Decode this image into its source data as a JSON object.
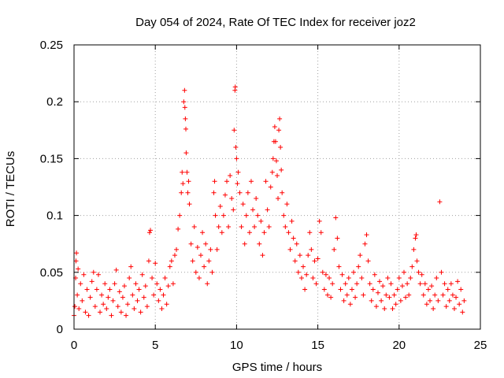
{
  "chart_data": {
    "type": "scatter",
    "title": "Day 054 of 2024, Rate Of TEC Index for receiver joz2",
    "xlabel": "GPS time / hours",
    "ylabel": "ROTI / TECUs",
    "xlim": [
      0,
      25
    ],
    "ylim": [
      0,
      0.25
    ],
    "x_ticks": [
      0,
      5,
      10,
      15,
      20,
      25
    ],
    "x_tick_labels": [
      "0",
      "5",
      "10",
      "15",
      "20",
      "25"
    ],
    "y_ticks": [
      0,
      0.05,
      0.1,
      0.15,
      0.2,
      0.25
    ],
    "y_tick_labels": [
      "0",
      "0.05",
      "0.1",
      "0.15",
      "0.2",
      "0.25"
    ],
    "grid": true,
    "marker": "+",
    "color": "#ff0000",
    "series": [
      {
        "name": "ROTI",
        "points": [
          [
            0.0,
            0.012
          ],
          [
            0.05,
            0.02
          ],
          [
            0.1,
            0.045
          ],
          [
            0.12,
            0.06
          ],
          [
            0.15,
            0.067
          ],
          [
            0.2,
            0.03
          ],
          [
            0.25,
            0.053
          ],
          [
            0.3,
            0.018
          ],
          [
            0.4,
            0.04
          ],
          [
            0.5,
            0.025
          ],
          [
            0.6,
            0.048
          ],
          [
            0.7,
            0.015
          ],
          [
            0.8,
            0.035
          ],
          [
            0.9,
            0.012
          ],
          [
            1.0,
            0.028
          ],
          [
            1.1,
            0.042
          ],
          [
            1.2,
            0.05
          ],
          [
            1.3,
            0.02
          ],
          [
            1.4,
            0.035
          ],
          [
            1.5,
            0.048
          ],
          [
            1.6,
            0.015
          ],
          [
            1.7,
            0.03
          ],
          [
            1.8,
            0.022
          ],
          [
            1.9,
            0.04
          ],
          [
            2.0,
            0.018
          ],
          [
            2.1,
            0.028
          ],
          [
            2.2,
            0.035
          ],
          [
            2.3,
            0.012
          ],
          [
            2.4,
            0.025
          ],
          [
            2.5,
            0.04
          ],
          [
            2.6,
            0.052
          ],
          [
            2.7,
            0.02
          ],
          [
            2.8,
            0.033
          ],
          [
            2.9,
            0.015
          ],
          [
            3.0,
            0.028
          ],
          [
            3.1,
            0.038
          ],
          [
            3.2,
            0.012
          ],
          [
            3.3,
            0.022
          ],
          [
            3.4,
            0.045
          ],
          [
            3.5,
            0.055
          ],
          [
            3.6,
            0.03
          ],
          [
            3.7,
            0.018
          ],
          [
            3.8,
            0.04
          ],
          [
            3.9,
            0.025
          ],
          [
            4.0,
            0.035
          ],
          [
            4.1,
            0.015
          ],
          [
            4.2,
            0.048
          ],
          [
            4.3,
            0.028
          ],
          [
            4.4,
            0.038
          ],
          [
            4.5,
            0.02
          ],
          [
            4.6,
            0.06
          ],
          [
            4.65,
            0.085
          ],
          [
            4.7,
            0.087
          ],
          [
            4.8,
            0.045
          ],
          [
            4.9,
            0.03
          ],
          [
            5.0,
            0.058
          ],
          [
            5.1,
            0.04
          ],
          [
            5.2,
            0.025
          ],
          [
            5.3,
            0.035
          ],
          [
            5.4,
            0.018
          ],
          [
            5.5,
            0.03
          ],
          [
            5.6,
            0.045
          ],
          [
            5.7,
            0.022
          ],
          [
            5.8,
            0.038
          ],
          [
            5.9,
            0.055
          ],
          [
            6.0,
            0.06
          ],
          [
            6.1,
            0.04
          ],
          [
            6.2,
            0.065
          ],
          [
            6.3,
            0.07
          ],
          [
            6.4,
            0.088
          ],
          [
            6.5,
            0.1
          ],
          [
            6.6,
            0.12
          ],
          [
            6.65,
            0.138
          ],
          [
            6.7,
            0.128
          ],
          [
            6.75,
            0.2
          ],
          [
            6.8,
            0.21
          ],
          [
            6.82,
            0.195
          ],
          [
            6.85,
            0.185
          ],
          [
            6.88,
            0.176
          ],
          [
            6.9,
            0.155
          ],
          [
            6.95,
            0.138
          ],
          [
            7.0,
            0.12
          ],
          [
            7.05,
            0.13
          ],
          [
            7.1,
            0.11
          ],
          [
            7.2,
            0.075
          ],
          [
            7.3,
            0.06
          ],
          [
            7.4,
            0.09
          ],
          [
            7.5,
            0.05
          ],
          [
            7.6,
            0.072
          ],
          [
            7.7,
            0.045
          ],
          [
            7.8,
            0.065
          ],
          [
            7.9,
            0.085
          ],
          [
            8.0,
            0.055
          ],
          [
            8.1,
            0.075
          ],
          [
            8.2,
            0.04
          ],
          [
            8.3,
            0.06
          ],
          [
            8.4,
            0.07
          ],
          [
            8.5,
            0.05
          ],
          [
            8.6,
            0.12
          ],
          [
            8.65,
            0.13
          ],
          [
            8.7,
            0.1
          ],
          [
            8.8,
            0.07
          ],
          [
            8.9,
            0.09
          ],
          [
            9.0,
            0.108
          ],
          [
            9.1,
            0.085
          ],
          [
            9.2,
            0.1
          ],
          [
            9.3,
            0.118
          ],
          [
            9.4,
            0.13
          ],
          [
            9.5,
            0.09
          ],
          [
            9.6,
            0.135
          ],
          [
            9.7,
            0.115
          ],
          [
            9.8,
            0.105
          ],
          [
            9.85,
            0.175
          ],
          [
            9.9,
            0.21
          ],
          [
            9.92,
            0.213
          ],
          [
            9.95,
            0.16
          ],
          [
            10.0,
            0.15
          ],
          [
            10.05,
            0.128
          ],
          [
            10.1,
            0.138
          ],
          [
            10.2,
            0.12
          ],
          [
            10.3,
            0.09
          ],
          [
            10.4,
            0.11
          ],
          [
            10.5,
            0.075
          ],
          [
            10.6,
            0.1
          ],
          [
            10.7,
            0.12
          ],
          [
            10.8,
            0.085
          ],
          [
            10.9,
            0.13
          ],
          [
            11.0,
            0.105
          ],
          [
            11.1,
            0.09
          ],
          [
            11.2,
            0.115
          ],
          [
            11.3,
            0.1
          ],
          [
            11.4,
            0.075
          ],
          [
            11.5,
            0.095
          ],
          [
            11.6,
            0.065
          ],
          [
            11.7,
            0.085
          ],
          [
            11.8,
            0.13
          ],
          [
            11.9,
            0.105
          ],
          [
            12.0,
            0.09
          ],
          [
            12.1,
            0.125
          ],
          [
            12.2,
            0.138
          ],
          [
            12.25,
            0.15
          ],
          [
            12.3,
            0.165
          ],
          [
            12.35,
            0.178
          ],
          [
            12.4,
            0.165
          ],
          [
            12.45,
            0.148
          ],
          [
            12.5,
            0.135
          ],
          [
            12.55,
            0.115
          ],
          [
            12.6,
            0.175
          ],
          [
            12.65,
            0.185
          ],
          [
            12.7,
            0.16
          ],
          [
            12.75,
            0.14
          ],
          [
            12.8,
            0.12
          ],
          [
            12.9,
            0.1
          ],
          [
            13.0,
            0.09
          ],
          [
            13.1,
            0.11
          ],
          [
            13.2,
            0.085
          ],
          [
            13.3,
            0.07
          ],
          [
            13.4,
            0.095
          ],
          [
            13.5,
            0.08
          ],
          [
            13.6,
            0.06
          ],
          [
            13.7,
            0.075
          ],
          [
            13.8,
            0.05
          ],
          [
            13.9,
            0.065
          ],
          [
            14.0,
            0.045
          ],
          [
            14.1,
            0.055
          ],
          [
            14.2,
            0.035
          ],
          [
            14.3,
            0.048
          ],
          [
            14.4,
            0.065
          ],
          [
            14.5,
            0.085
          ],
          [
            14.6,
            0.07
          ],
          [
            14.7,
            0.045
          ],
          [
            14.8,
            0.06
          ],
          [
            14.9,
            0.04
          ],
          [
            15.0,
            0.062
          ],
          [
            15.1,
            0.095
          ],
          [
            15.2,
            0.085
          ],
          [
            15.3,
            0.05
          ],
          [
            15.4,
            0.035
          ],
          [
            15.5,
            0.048
          ],
          [
            15.6,
            0.03
          ],
          [
            15.7,
            0.045
          ],
          [
            15.8,
            0.028
          ],
          [
            15.9,
            0.04
          ],
          [
            16.0,
            0.07
          ],
          [
            16.1,
            0.098
          ],
          [
            16.2,
            0.08
          ],
          [
            16.3,
            0.055
          ],
          [
            16.4,
            0.035
          ],
          [
            16.5,
            0.048
          ],
          [
            16.6,
            0.025
          ],
          [
            16.7,
            0.04
          ],
          [
            16.8,
            0.03
          ],
          [
            16.9,
            0.045
          ],
          [
            17.0,
            0.022
          ],
          [
            17.1,
            0.035
          ],
          [
            17.2,
            0.05
          ],
          [
            17.3,
            0.028
          ],
          [
            17.4,
            0.04
          ],
          [
            17.5,
            0.055
          ],
          [
            17.6,
            0.065
          ],
          [
            17.7,
            0.045
          ],
          [
            17.8,
            0.03
          ],
          [
            17.9,
            0.075
          ],
          [
            18.0,
            0.083
          ],
          [
            18.1,
            0.06
          ],
          [
            18.2,
            0.04
          ],
          [
            18.3,
            0.025
          ],
          [
            18.4,
            0.035
          ],
          [
            18.5,
            0.048
          ],
          [
            18.6,
            0.02
          ],
          [
            18.7,
            0.032
          ],
          [
            18.8,
            0.042
          ],
          [
            18.9,
            0.025
          ],
          [
            19.0,
            0.038
          ],
          [
            19.1,
            0.018
          ],
          [
            19.2,
            0.03
          ],
          [
            19.3,
            0.045
          ],
          [
            19.4,
            0.028
          ],
          [
            19.5,
            0.04
          ],
          [
            19.6,
            0.018
          ],
          [
            19.7,
            0.03
          ],
          [
            19.8,
            0.022
          ],
          [
            19.9,
            0.035
          ],
          [
            20.0,
            0.045
          ],
          [
            20.1,
            0.025
          ],
          [
            20.2,
            0.038
          ],
          [
            20.3,
            0.05
          ],
          [
            20.4,
            0.028
          ],
          [
            20.5,
            0.04
          ],
          [
            20.6,
            0.03
          ],
          [
            20.7,
            0.045
          ],
          [
            20.8,
            0.055
          ],
          [
            20.9,
            0.07
          ],
          [
            21.0,
            0.08
          ],
          [
            21.05,
            0.083
          ],
          [
            21.1,
            0.06
          ],
          [
            21.2,
            0.05
          ],
          [
            21.3,
            0.04
          ],
          [
            21.4,
            0.048
          ],
          [
            21.5,
            0.03
          ],
          [
            21.6,
            0.04
          ],
          [
            21.7,
            0.022
          ],
          [
            21.8,
            0.035
          ],
          [
            21.9,
            0.025
          ],
          [
            22.0,
            0.038
          ],
          [
            22.1,
            0.018
          ],
          [
            22.2,
            0.03
          ],
          [
            22.3,
            0.045
          ],
          [
            22.4,
            0.025
          ],
          [
            22.5,
            0.112
          ],
          [
            22.6,
            0.05
          ],
          [
            22.7,
            0.03
          ],
          [
            22.8,
            0.04
          ],
          [
            22.9,
            0.02
          ],
          [
            23.0,
            0.035
          ],
          [
            23.1,
            0.025
          ],
          [
            23.2,
            0.04
          ],
          [
            23.3,
            0.03
          ],
          [
            23.4,
            0.018
          ],
          [
            23.5,
            0.028
          ],
          [
            23.6,
            0.042
          ],
          [
            23.7,
            0.022
          ],
          [
            23.8,
            0.035
          ],
          [
            23.9,
            0.015
          ],
          [
            24.0,
            0.025
          ]
        ]
      }
    ]
  }
}
